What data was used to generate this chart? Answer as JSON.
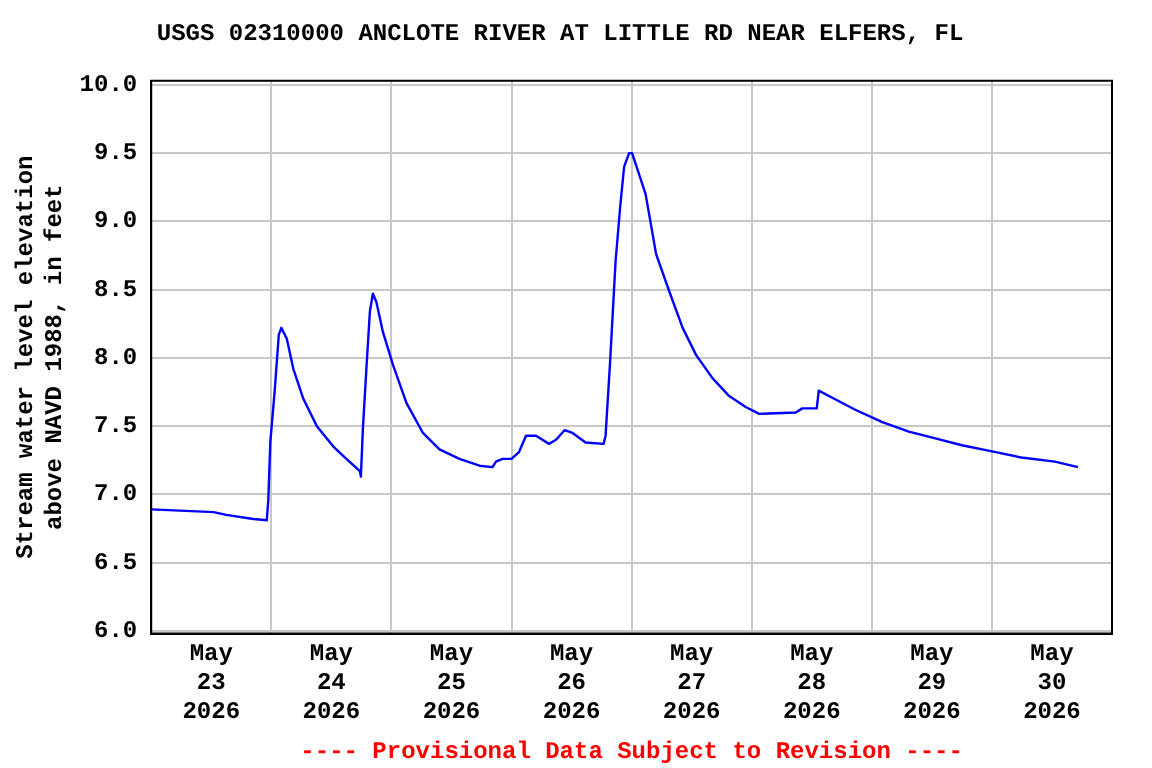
{
  "chart_data": {
    "type": "line",
    "title": "USGS 02310000 ANCLOTE RIVER AT LITTLE RD NEAR ELFERS, FL",
    "ylabel": "Stream water level elevation above NAVD 1988, in feet",
    "annotations": [
      "---- Provisional Data Subject to Revision ----"
    ],
    "x": [
      "2026-05-23T00:00",
      "2026-05-23T12:30",
      "2026-05-23T15:00",
      "2026-05-23T20:24",
      "2026-05-23T23:06",
      "2026-05-23T23:24",
      "2026-05-23T23:48",
      "2026-05-24T00:42",
      "2026-05-24T01:30",
      "2026-05-24T02:00",
      "2026-05-24T03:06",
      "2026-05-24T04:24",
      "2026-05-24T06:24",
      "2026-05-24T09:06",
      "2026-05-24T12:24",
      "2026-05-24T15:00",
      "2026-05-24T17:42",
      "2026-05-24T17:54",
      "2026-05-24T18:18",
      "2026-05-24T19:00",
      "2026-05-24T19:42",
      "2026-05-24T20:18",
      "2026-05-24T21:00",
      "2026-05-24T22:18",
      "2026-05-25T00:18",
      "2026-05-25T03:00",
      "2026-05-25T06:18",
      "2026-05-25T09:36",
      "2026-05-25T13:36",
      "2026-05-25T17:36",
      "2026-05-25T20:12",
      "2026-05-25T20:54",
      "2026-05-25T22:12",
      "2026-05-26T00:00",
      "2026-05-26T01:30",
      "2026-05-26T02:54",
      "2026-05-26T04:54",
      "2026-05-26T07:30",
      "2026-05-26T08:54",
      "2026-05-26T10:36",
      "2026-05-26T12:12",
      "2026-05-26T14:48",
      "2026-05-26T18:24",
      "2026-05-26T18:48",
      "2026-05-26T19:42",
      "2026-05-26T20:48",
      "2026-05-26T21:42",
      "2026-05-26T22:30",
      "2026-05-26T23:30",
      "2026-05-27T00:06",
      "2026-05-27T02:48",
      "2026-05-27T04:54",
      "2026-05-27T07:30",
      "2026-05-27T10:12",
      "2026-05-27T12:54",
      "2026-05-27T16:12",
      "2026-05-27T19:30",
      "2026-05-27T22:48",
      "2026-05-28T01:30",
      "2026-05-28T08:48",
      "2026-05-28T10:06",
      "2026-05-28T13:00",
      "2026-05-28T13:24",
      "2026-05-28T16:00",
      "2026-05-28T20:42",
      "2026-05-29T02:06",
      "2026-05-29T07:24",
      "2026-05-29T12:42",
      "2026-05-29T18:00",
      "2026-05-29T23:18",
      "2026-05-30T05:54",
      "2026-05-30T12:36",
      "2026-05-30T17:12"
    ],
    "series": [
      {
        "color": "#0000ff",
        "values": [
          6.89,
          6.87,
          6.85,
          6.82,
          6.81,
          6.96,
          7.38,
          7.77,
          8.17,
          8.22,
          8.14,
          7.92,
          7.7,
          7.5,
          7.35,
          7.26,
          7.17,
          7.13,
          7.48,
          7.92,
          8.34,
          8.47,
          8.41,
          8.19,
          7.95,
          7.67,
          7.45,
          7.33,
          7.26,
          7.21,
          7.2,
          7.24,
          7.26,
          7.26,
          7.31,
          7.43,
          7.43,
          7.37,
          7.4,
          7.47,
          7.45,
          7.38,
          7.37,
          7.43,
          7.97,
          8.71,
          9.1,
          9.4,
          9.5,
          9.5,
          9.2,
          8.76,
          8.49,
          8.22,
          8.02,
          7.85,
          7.72,
          7.64,
          7.59,
          7.6,
          7.63,
          7.63,
          7.76,
          7.71,
          7.62,
          7.53,
          7.46,
          7.41,
          7.36,
          7.32,
          7.27,
          7.24,
          7.2
        ]
      }
    ],
    "xlim": [
      "2026-05-23T00:00",
      "2026-05-31T00:00"
    ],
    "xticks": [
      {
        "value": "2026-05-23T12:00",
        "label": "May 23 2026"
      },
      {
        "value": "2026-05-24T00:00",
        "label": null
      },
      {
        "value": "2026-05-24T12:00",
        "label": "May 24 2026"
      },
      {
        "value": "2026-05-25T00:00",
        "label": null
      },
      {
        "value": "2026-05-25T12:00",
        "label": "May 25 2026"
      },
      {
        "value": "2026-05-26T00:00",
        "label": null
      },
      {
        "value": "2026-05-26T12:00",
        "label": "May 26 2026"
      },
      {
        "value": "2026-05-27T00:00",
        "label": null
      },
      {
        "value": "2026-05-27T12:00",
        "label": "May 27 2026"
      },
      {
        "value": "2026-05-28T00:00",
        "label": null
      },
      {
        "value": "2026-05-28T12:00",
        "label": "May 28 2026"
      },
      {
        "value": "2026-05-29T00:00",
        "label": null
      },
      {
        "value": "2026-05-29T12:00",
        "label": "May 29 2026"
      },
      {
        "value": "2026-05-30T00:00",
        "label": null
      },
      {
        "value": "2026-05-30T12:00",
        "label": "May 30 2026"
      }
    ],
    "ylim": [
      5.98,
      10.03
    ],
    "yticks": [
      {
        "value": 6,
        "label": "6.0"
      },
      {
        "value": 6.5,
        "label": "6.5"
      },
      {
        "value": 7,
        "label": "7.0"
      },
      {
        "value": 7.5,
        "label": "7.5"
      },
      {
        "value": 8,
        "label": "8.0"
      },
      {
        "value": 8.5,
        "label": "8.5"
      },
      {
        "value": 9,
        "label": "9.0"
      },
      {
        "value": 9.5,
        "label": "9.5"
      },
      {
        "value": 10,
        "label": "10.0"
      }
    ],
    "grid": true,
    "legend": false,
    "marker": "none",
    "line_style": "solid"
  }
}
